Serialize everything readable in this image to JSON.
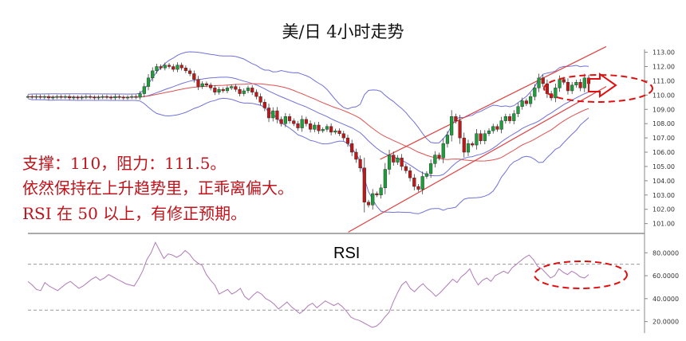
{
  "title": "美/日 4小时走势",
  "annotations": [
    "支撑：110，阻力：111.5。",
    "依然保持在上升趋势里，正乖离偏大。",
    "RSI 在 50 以上，有修正预期。"
  ],
  "colors": {
    "up": "#1e9e3a",
    "down": "#c01818",
    "ma": "#e05050",
    "bollinger": "#7070d8",
    "trend": "#e04040",
    "rsi": "#b07ab8",
    "highlight": "#e01010",
    "grid": "#999999"
  },
  "chart_data": [
    {
      "type": "candlestick",
      "title": "美/日 4小时走势",
      "ylim": [
        100.7,
        113.2
      ],
      "yticks": [
        "113.00",
        "112.00",
        "111.00",
        "110.00",
        "109.00",
        "108.00",
        "107.00",
        "106.00",
        "105.00",
        "104.00",
        "103.00",
        "102.00",
        "101.00"
      ],
      "close": [
        109.9,
        109.85,
        109.9,
        109.85,
        109.9,
        109.8,
        109.85,
        109.9,
        109.85,
        109.9,
        109.8,
        109.85,
        109.8,
        109.85,
        109.9,
        109.85,
        109.8,
        109.85,
        109.9,
        109.85,
        109.8,
        109.9,
        109.85,
        109.8,
        109.85,
        109.9,
        109.85,
        110.1,
        110.6,
        111.2,
        111.7,
        112.0,
        111.9,
        112.1,
        112.0,
        111.8,
        112.1,
        111.9,
        111.7,
        111.5,
        111.1,
        110.6,
        110.8,
        110.7,
        110.5,
        110.2,
        110.4,
        110.3,
        110.5,
        110.6,
        110.4,
        110.1,
        110.3,
        110.5,
        110.2,
        109.9,
        109.5,
        109.1,
        108.4,
        108.9,
        108.3,
        108.0,
        108.5,
        108.2,
        108.0,
        107.7,
        108.3,
        108.0,
        107.6,
        107.9,
        107.5,
        107.6,
        107.8,
        107.4,
        107.5,
        107.3,
        107.0,
        106.6,
        106.0,
        105.5,
        104.9,
        102.5,
        102.3,
        103.1,
        103.0,
        103.5,
        104.8,
        105.8,
        105.3,
        105.6,
        105.0,
        104.7,
        104.2,
        103.6,
        103.4,
        104.3,
        104.5,
        105.2,
        105.8,
        105.6,
        106.6,
        107.2,
        108.5,
        108.2,
        107.0,
        106.0,
        106.6,
        106.5,
        107.3,
        106.8,
        107.3,
        107.5,
        107.8,
        107.6,
        108.2,
        108.5,
        108.2,
        108.7,
        109.2,
        109.6,
        109.4,
        109.9,
        110.5,
        111.2,
        110.8,
        110.1,
        109.8,
        110.5,
        111.1,
        110.9,
        110.3,
        110.7,
        110.9,
        110.5,
        111.2,
        110.8
      ],
      "overlays": [
        "moving-average",
        "bollinger-bands",
        "rising-channel"
      ]
    },
    {
      "type": "line",
      "title": "RSI",
      "ylim": [
        10,
        92
      ],
      "yticks": [
        "80.0000",
        "60.0000",
        "40.0000",
        "20.0000"
      ],
      "reference_lines": [
        70,
        30
      ],
      "values": [
        55,
        52,
        48,
        47,
        54,
        51,
        49,
        47,
        50,
        53,
        55,
        52,
        49,
        51,
        54,
        57,
        59,
        56,
        58,
        61,
        59,
        57,
        55,
        53,
        52,
        51,
        57,
        64,
        74,
        80,
        89,
        82,
        75,
        79,
        78,
        76,
        78,
        82,
        79,
        74,
        71,
        69,
        61,
        56,
        52,
        44,
        46,
        48,
        44,
        46,
        49,
        42,
        39,
        43,
        46,
        44,
        40,
        38,
        35,
        31,
        34,
        37,
        33,
        30,
        27,
        30,
        34,
        36,
        32,
        35,
        38,
        36,
        34,
        36,
        33,
        29,
        24,
        22,
        21,
        19,
        17,
        15,
        16,
        19,
        24,
        28,
        37,
        45,
        52,
        55,
        49,
        46,
        50,
        53,
        49,
        46,
        42,
        45,
        49,
        53,
        57,
        54,
        59,
        62,
        66,
        58,
        52,
        56,
        58,
        55,
        60,
        62,
        64,
        62,
        67,
        70,
        73,
        76,
        78,
        74,
        68,
        66,
        62,
        58,
        60,
        66,
        63,
        61,
        64,
        62,
        59,
        58,
        61
      ]
    }
  ]
}
